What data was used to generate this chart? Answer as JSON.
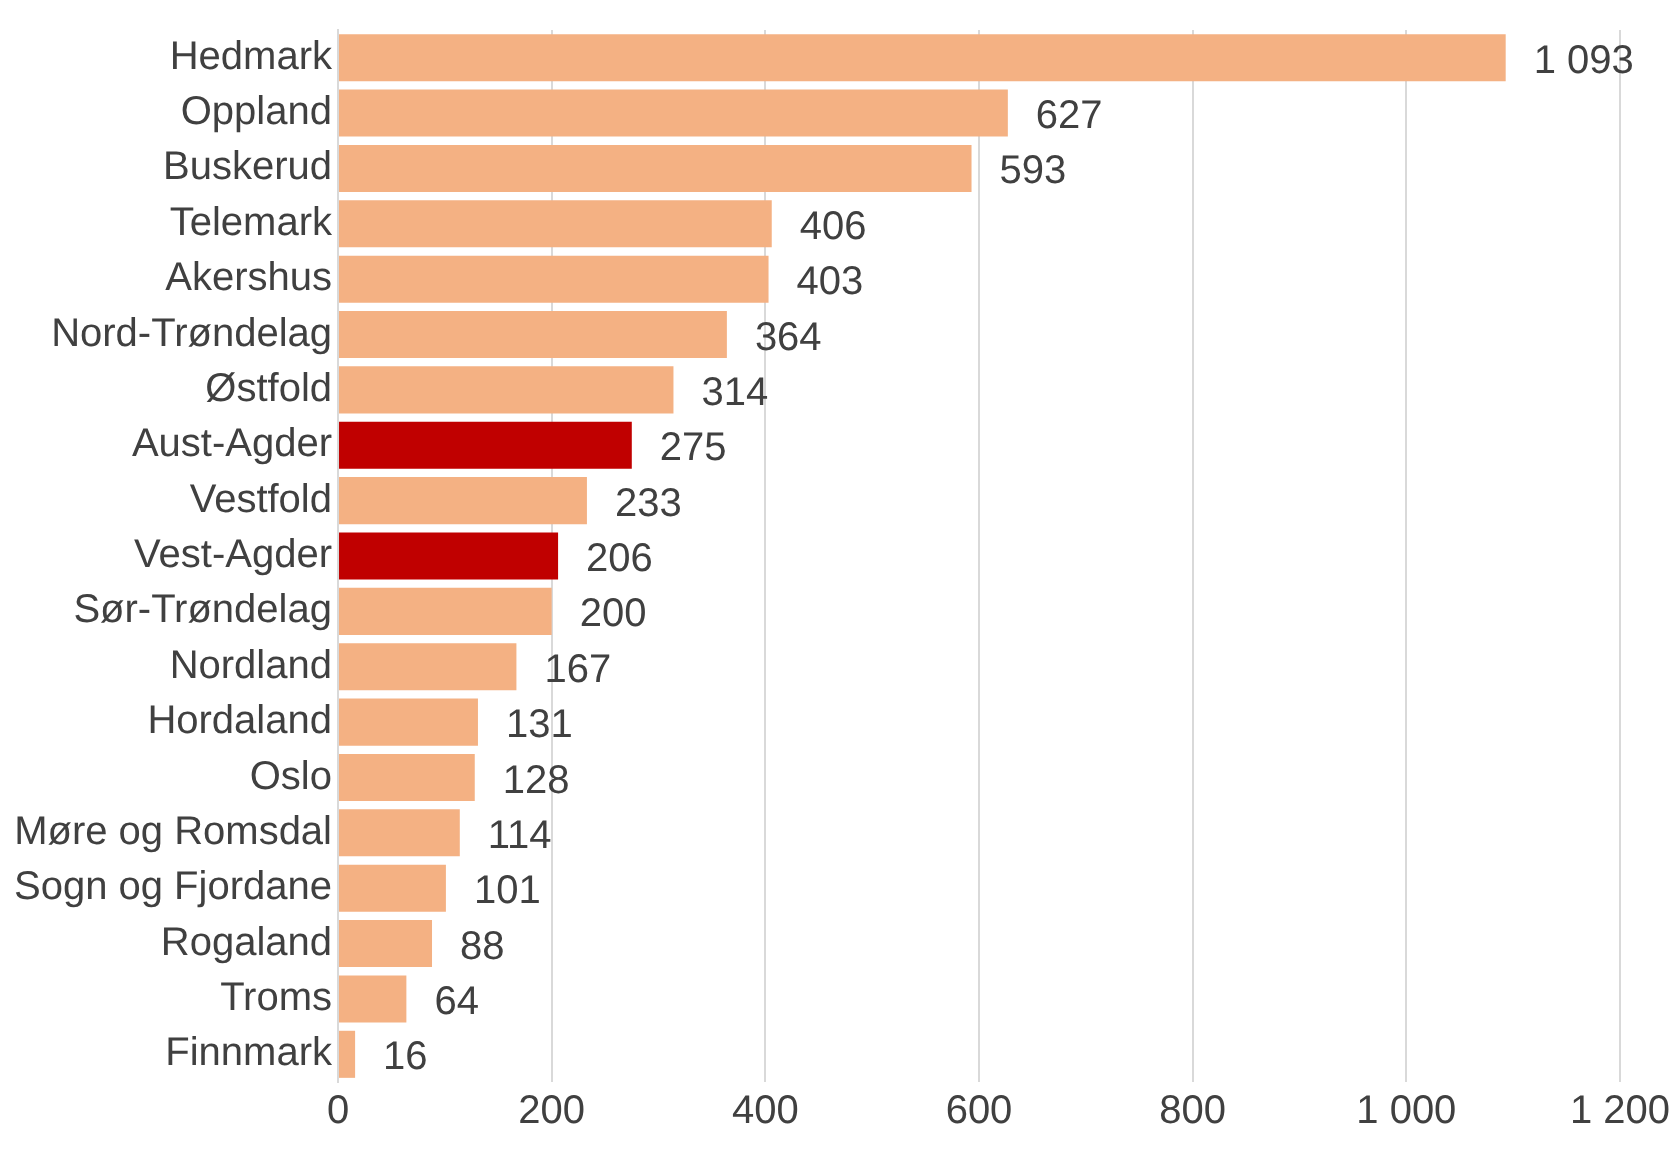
{
  "chart_data": {
    "type": "bar",
    "orientation": "horizontal",
    "categories": [
      "Hedmark",
      "Oppland",
      "Buskerud",
      "Telemark",
      "Akershus",
      "Nord-Trøndelag",
      "Østfold",
      "Aust-Agder",
      "Vestfold",
      "Vest-Agder",
      "Sør-Trøndelag",
      "Nordland",
      "Hordaland",
      "Oslo",
      "Møre og Romsdal",
      "Sogn og Fjordane",
      "Rogaland",
      "Troms",
      "Finnmark"
    ],
    "values": [
      1093,
      627,
      593,
      406,
      403,
      364,
      314,
      275,
      233,
      206,
      200,
      167,
      131,
      128,
      114,
      101,
      88,
      64,
      16
    ],
    "colors": [
      "#f4b183",
      "#f4b183",
      "#f4b183",
      "#f4b183",
      "#f4b183",
      "#f4b183",
      "#f4b183",
      "#c00000",
      "#f4b183",
      "#c00000",
      "#f4b183",
      "#f4b183",
      "#f4b183",
      "#f4b183",
      "#f4b183",
      "#f4b183",
      "#f4b183",
      "#f4b183",
      "#f4b183"
    ],
    "value_labels": [
      "1 093",
      "627",
      "593",
      "406",
      "403",
      "364",
      "314",
      "275",
      "233",
      "206",
      "200",
      "167",
      "131",
      "128",
      "114",
      "101",
      "88",
      "64",
      "16"
    ],
    "xlim": [
      0,
      1200
    ],
    "xticks": [
      0,
      200,
      400,
      600,
      800,
      {
        "value": 1000,
        "label": "1 000"
      },
      {
        "value": 1200,
        "label": "1 200"
      }
    ],
    "grid": "x",
    "legend": false
  }
}
